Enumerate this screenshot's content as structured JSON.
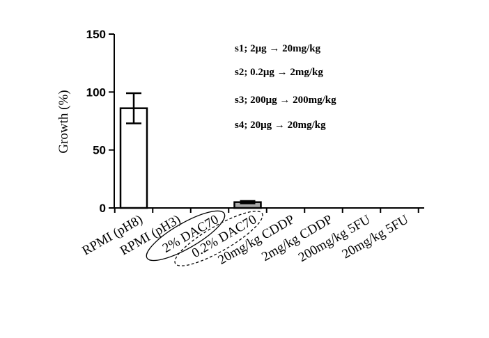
{
  "chart_data": {
    "type": "bar",
    "ylabel": "Growth (%)",
    "ylim": [
      0,
      150
    ],
    "yticks": [
      0,
      50,
      100,
      150
    ],
    "categories": [
      "RPMI (pH8)",
      "RPMI (pH3)",
      "2% DAC70",
      "0.2% DAC70",
      "20mg/kg CDDP",
      "2mg/kg CDDP",
      "200mg/kg 5FU",
      "20mg/kg 5FU"
    ],
    "values": [
      86,
      0,
      0,
      5,
      0,
      0,
      0,
      0
    ],
    "error": [
      13,
      0,
      0,
      1,
      0,
      0,
      0,
      0
    ],
    "bar_colors": [
      "#ffffff",
      "#ffffff",
      "#ffffff",
      "#a8a8a8",
      "#ffffff",
      "#ffffff",
      "#ffffff",
      "#ffffff"
    ],
    "circled": [
      {
        "category_index": 2,
        "style": "solid"
      },
      {
        "category_index": 3,
        "style": "dashed"
      }
    ],
    "annotations": [
      "s1; 2μg → 20mg/kg",
      "s2; 0.2μg → 2mg/kg",
      "s3; 200μg → 200mg/kg",
      "s4; 20μg → 20mg/kg"
    ],
    "grid": false
  }
}
